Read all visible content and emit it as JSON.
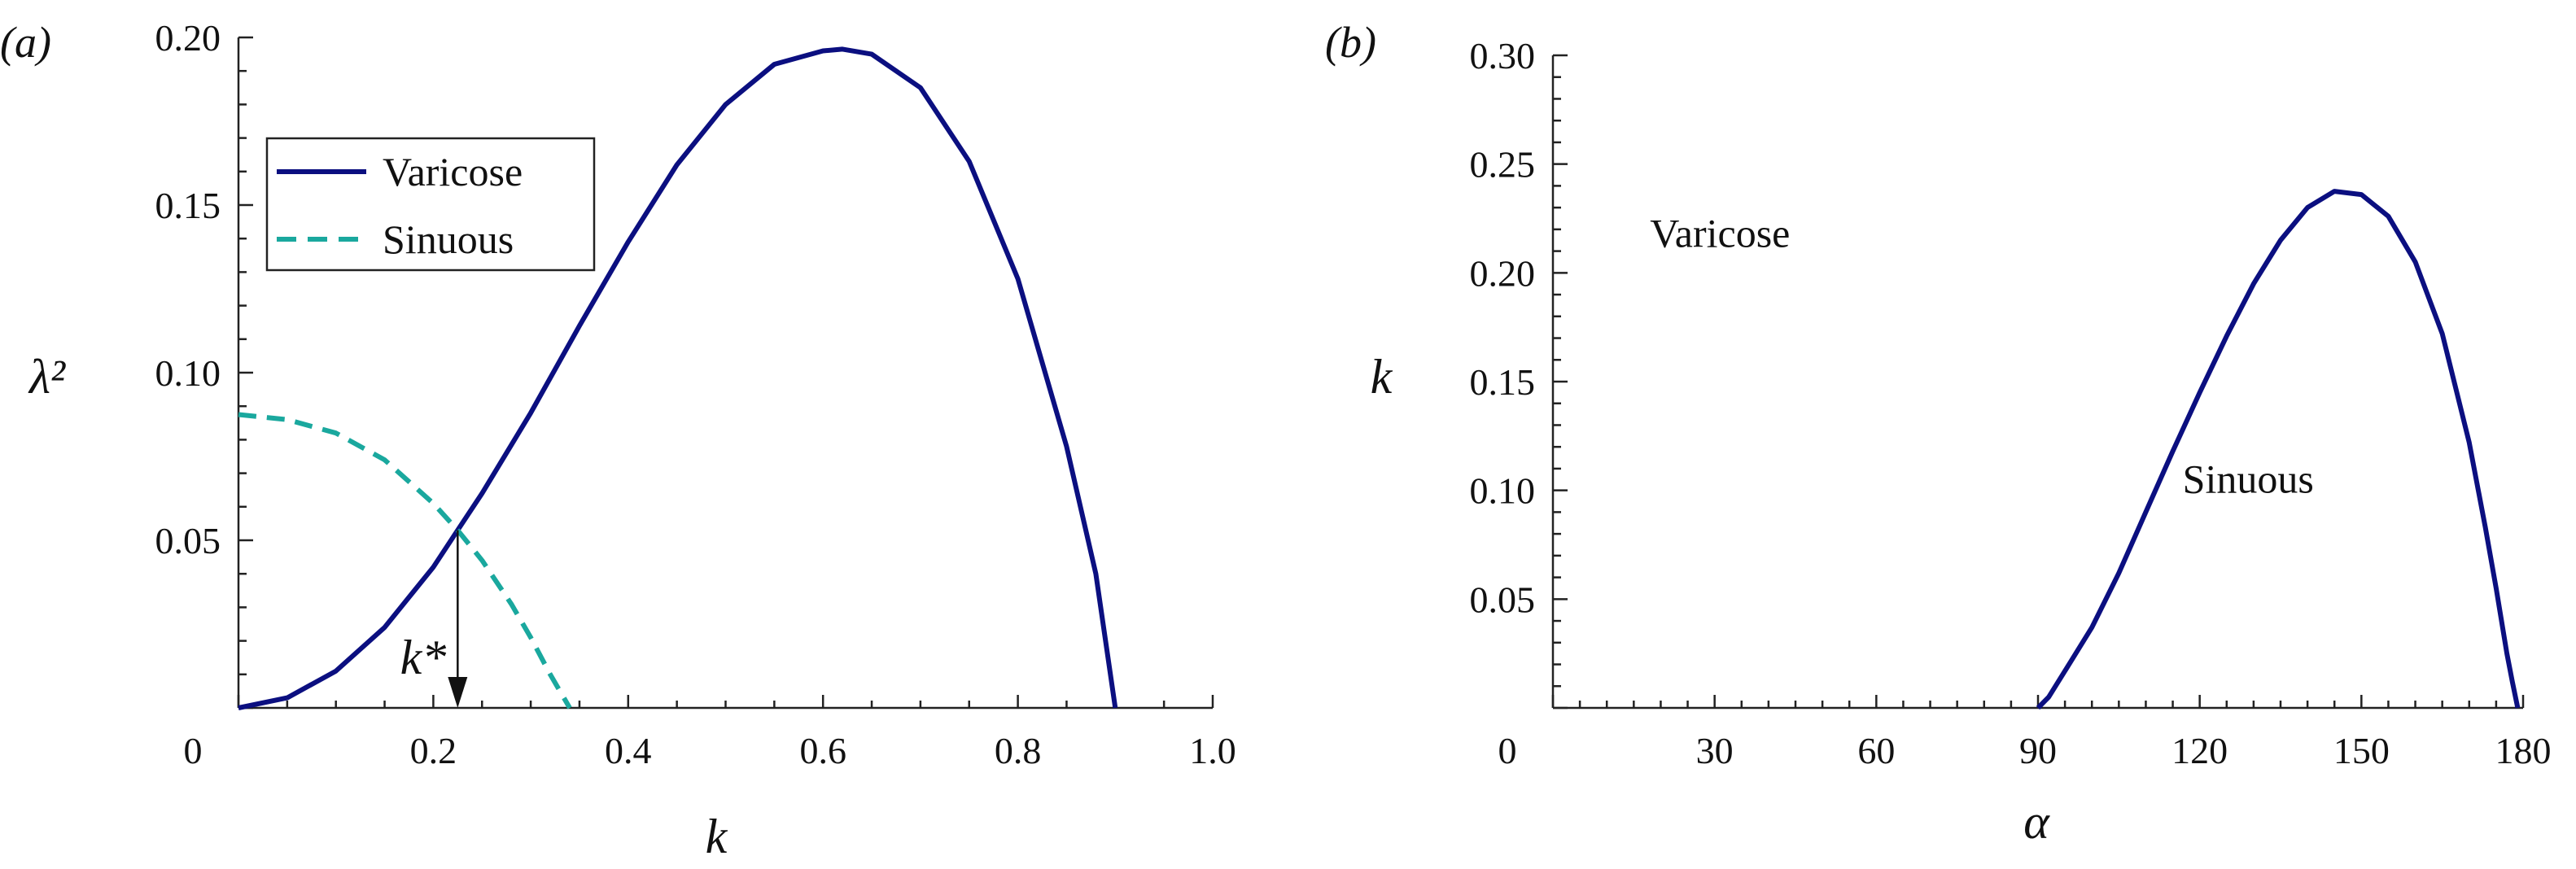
{
  "colors": {
    "varicose": "#0b0f80",
    "sinuous": "#1aa89e",
    "axis": "#222222"
  },
  "chart_data": [
    {
      "panel_label": "(a)",
      "type": "line",
      "xlabel": "k",
      "ylabel": "λ²",
      "xlim": [
        0,
        1.0
      ],
      "ylim": [
        0,
        0.2
      ],
      "x_tick_labels": [
        "0",
        "0.2",
        "0.4",
        "0.6",
        "0.8",
        "1.0"
      ],
      "y_tick_labels": [
        "0.05",
        "0.10",
        "0.15",
        "0.20"
      ],
      "legend": {
        "placement": "top-left",
        "entries": [
          "Varicose",
          "Sinuous"
        ]
      },
      "series": [
        {
          "name": "Varicose",
          "style": "solid",
          "x": [
            0.0,
            0.05,
            0.1,
            0.15,
            0.2,
            0.225,
            0.25,
            0.3,
            0.35,
            0.4,
            0.45,
            0.5,
            0.55,
            0.6,
            0.62,
            0.65,
            0.7,
            0.75,
            0.8,
            0.85,
            0.88,
            0.9
          ],
          "y": [
            0.0,
            0.003,
            0.011,
            0.024,
            0.042,
            0.053,
            0.064,
            0.088,
            0.114,
            0.139,
            0.162,
            0.18,
            0.192,
            0.196,
            0.1965,
            0.195,
            0.185,
            0.163,
            0.128,
            0.078,
            0.04,
            0.0
          ]
        },
        {
          "name": "Sinuous",
          "style": "dashed",
          "x": [
            0.0,
            0.05,
            0.1,
            0.15,
            0.2,
            0.225,
            0.25,
            0.28,
            0.3,
            0.32,
            0.33,
            0.34
          ],
          "y": [
            0.0875,
            0.086,
            0.082,
            0.074,
            0.061,
            0.053,
            0.044,
            0.031,
            0.021,
            0.01,
            0.005,
            0.0
          ]
        }
      ],
      "annotation": {
        "label": "k*",
        "x": 0.225,
        "y_from": 0.053,
        "y_to": 0.0
      }
    },
    {
      "panel_label": "(b)",
      "type": "line",
      "xlabel": "α",
      "ylabel": "k",
      "xlim": [
        0,
        180
      ],
      "ylim": [
        0,
        0.3
      ],
      "x_tick_labels": [
        "0",
        "30",
        "60",
        "90",
        "120",
        "150",
        "180"
      ],
      "y_tick_labels": [
        "0.05",
        "0.10",
        "0.15",
        "0.20",
        "0.25",
        "0.30"
      ],
      "region_labels": [
        {
          "text": "Varicose",
          "x": 31,
          "y": 0.212
        },
        {
          "text": "Sinuous",
          "x": 129,
          "y": 0.099
        }
      ],
      "series": [
        {
          "x": [
            90,
            92,
            95,
            100,
            105,
            110,
            115,
            120,
            125,
            130,
            135,
            140,
            145,
            150,
            155,
            160,
            165,
            170,
            173,
            175,
            177,
            178,
            179
          ],
          "y": [
            0.0,
            0.005,
            0.017,
            0.037,
            0.062,
            0.09,
            0.118,
            0.145,
            0.171,
            0.195,
            0.215,
            0.23,
            0.2375,
            0.236,
            0.226,
            0.205,
            0.172,
            0.122,
            0.083,
            0.055,
            0.025,
            0.012,
            0.0
          ]
        }
      ]
    }
  ]
}
